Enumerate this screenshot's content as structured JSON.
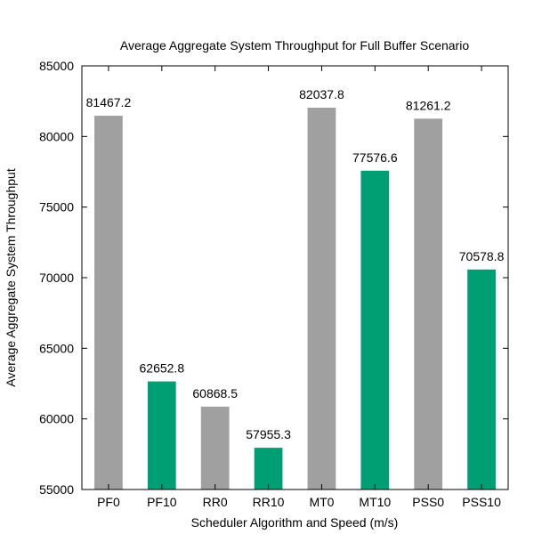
{
  "chart_data": {
    "type": "bar",
    "title": "Average Aggregate System Throughput for Full Buffer Scenario",
    "xlabel": "Scheduler Algorithm and Speed (m/s)",
    "ylabel": "Average Aggregate System Throughput",
    "ylim": [
      55000,
      85000
    ],
    "yticks": [
      55000,
      60000,
      65000,
      70000,
      75000,
      80000,
      85000
    ],
    "ytick_labels": [
      "55000",
      "60000",
      "65000",
      "70000",
      "75000",
      "80000",
      "85000"
    ],
    "grid": false,
    "legend": "none",
    "categories": [
      "PF0",
      "PF10",
      "RR0",
      "RR10",
      "MT0",
      "MT10",
      "PSS0",
      "PSS10"
    ],
    "values": [
      81467.2,
      62652.8,
      60868.5,
      57955.3,
      82037.8,
      77576.6,
      81261.2,
      70578.8
    ],
    "value_labels": [
      "81467.2",
      "62652.8",
      "60868.5",
      "57955.3",
      "82037.8",
      "77576.6",
      "81261.2",
      "70578.8"
    ],
    "colors": [
      "#a0a0a0",
      "#009e73",
      "#a0a0a0",
      "#009e73",
      "#a0a0a0",
      "#009e73",
      "#a0a0a0",
      "#009e73"
    ]
  }
}
